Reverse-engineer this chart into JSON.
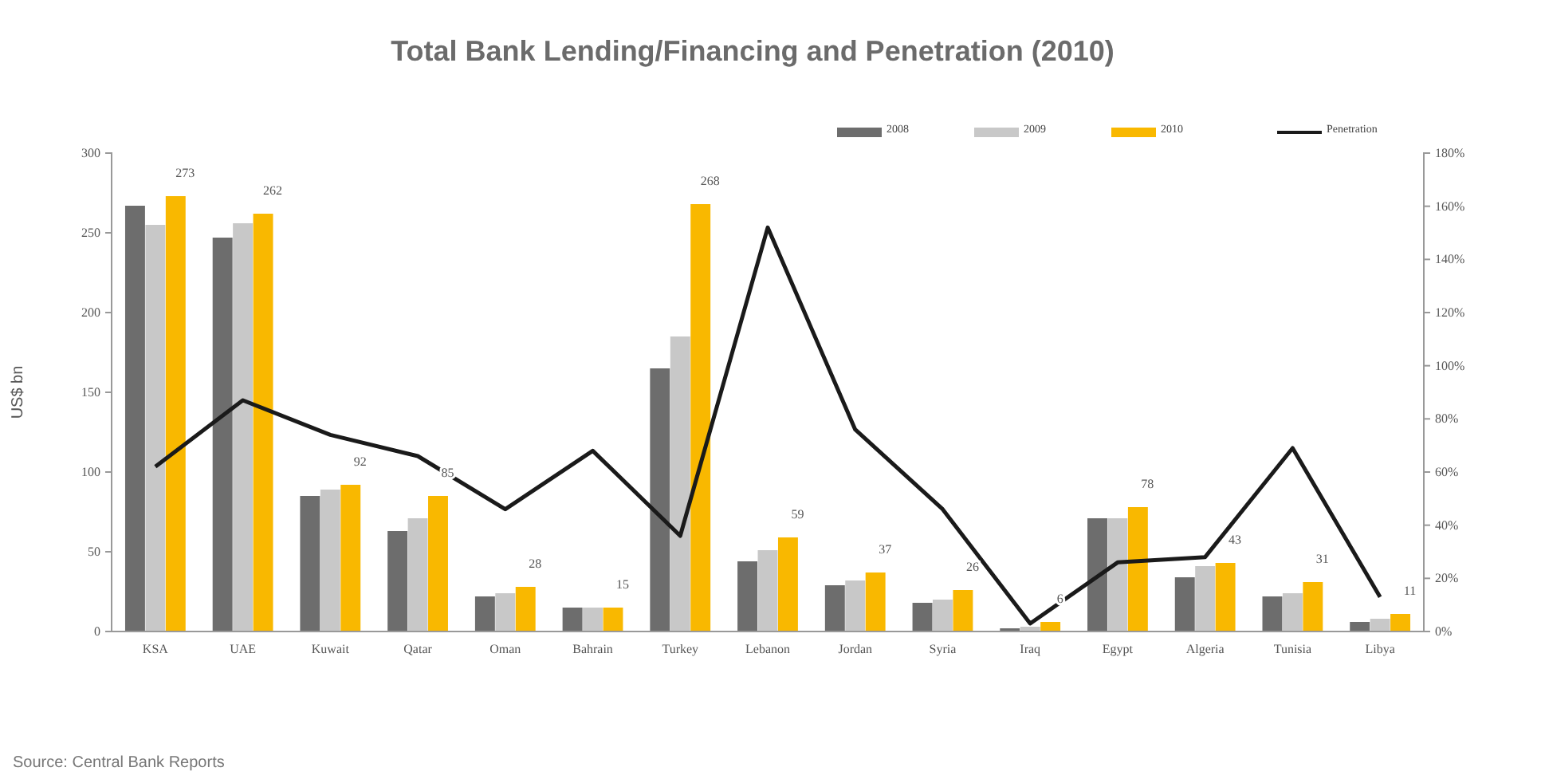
{
  "chart_data": {
    "type": "bar",
    "title": "Total Bank Lending/Financing and Penetration (2010)",
    "ylabel": "US$ bn",
    "categories": [
      "KSA",
      "UAE",
      "Kuwait",
      "Qatar",
      "Oman",
      "Bahrain",
      "Turkey",
      "Lebanon",
      "Jordan",
      "Syria",
      "Iraq",
      "Egypt",
      "Algeria",
      "Tunisia",
      "Libya"
    ],
    "series": [
      {
        "name": "2008",
        "color": "#6d6d6d",
        "values": [
          267,
          247,
          85,
          63,
          22,
          15,
          165,
          44,
          29,
          18,
          2,
          71,
          34,
          22,
          6
        ]
      },
      {
        "name": "2009",
        "color": "#c8c8c8",
        "values": [
          255,
          256,
          89,
          71,
          24,
          15,
          185,
          51,
          32,
          20,
          3,
          71,
          41,
          24,
          8
        ]
      },
      {
        "name": "2010",
        "color": "#f9b800",
        "values": [
          273,
          262,
          92,
          85,
          28,
          15,
          268,
          59,
          37,
          26,
          6,
          78,
          43,
          31,
          11
        ],
        "value_labels": [
          "273",
          "262",
          "92",
          "85",
          "28",
          "15",
          "268",
          "59",
          "37",
          "26",
          "6",
          "78",
          "43",
          "31",
          "11"
        ]
      },
      {
        "name": "Penetration",
        "type": "line",
        "axis": "y2",
        "color": "#1a1a1a",
        "values": [
          62,
          87,
          74,
          66,
          46,
          68,
          36,
          152,
          76,
          46,
          3,
          26,
          28,
          69,
          13
        ]
      }
    ],
    "ylim": [
      0,
      300
    ],
    "yticks": [
      0,
      50,
      100,
      150,
      200,
      250,
      300
    ],
    "y2lim": [
      0,
      180
    ],
    "y2ticks": [
      {
        "value": 0,
        "label": "0%"
      },
      {
        "value": 20,
        "label": "20%"
      },
      {
        "value": 40,
        "label": "40%"
      },
      {
        "value": 60,
        "label": "60%"
      },
      {
        "value": 80,
        "label": "80%"
      },
      {
        "value": 100,
        "label": "100%"
      },
      {
        "value": 120,
        "label": "120%"
      },
      {
        "value": 140,
        "label": "140%"
      },
      {
        "value": 160,
        "label": "160%"
      },
      {
        "value": 180,
        "label": "180%"
      }
    ],
    "legend": "top right",
    "grid": false,
    "marker": "none",
    "line_style": "solid",
    "annotations": [
      "Source: Central Bank Reports"
    ]
  }
}
